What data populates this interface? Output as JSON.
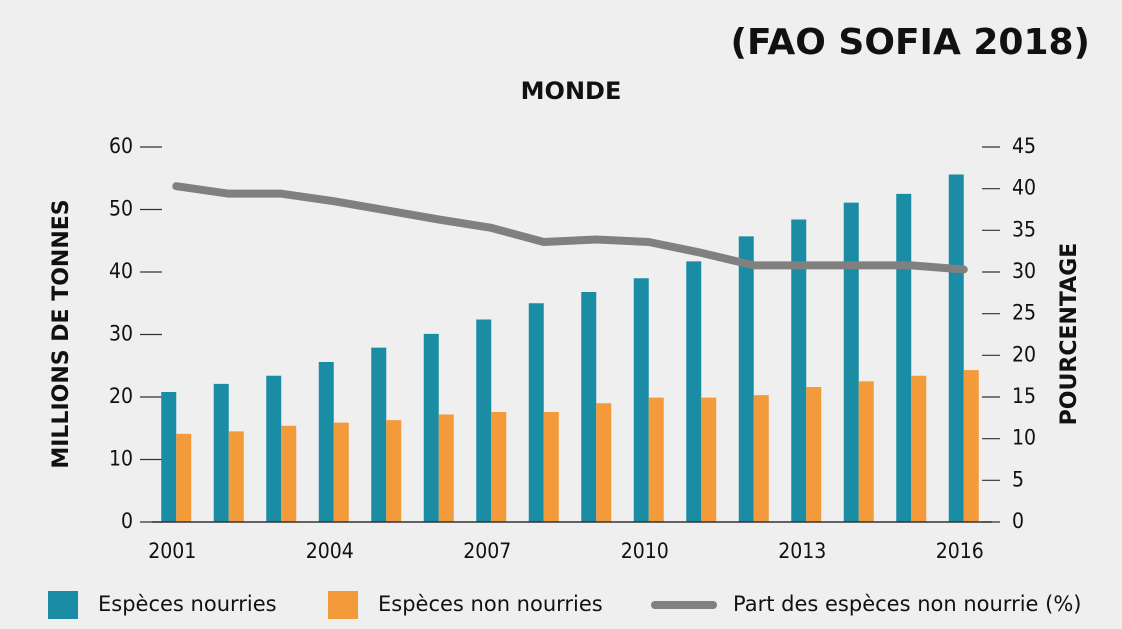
{
  "chart_data": {
    "type": "bar_line",
    "title": "(FAO SOFIA 2018)",
    "subtitle": "MONDE",
    "y_label": "MILLIONS DE TONNES",
    "y2_label": "POURCENTAGE",
    "categories": [
      "2001",
      null,
      null,
      "2004",
      null,
      null,
      "2007",
      null,
      null,
      "2010",
      null,
      null,
      "2013",
      null,
      null,
      "2016"
    ],
    "series": [
      {
        "name": "Espèces nourries",
        "color": "#1a8ca3",
        "type": "bar",
        "values": [
          20.8,
          22.1,
          23.4,
          25.6,
          27.9,
          30.1,
          32.4,
          35.0,
          36.8,
          39.0,
          41.7,
          45.7,
          48.4,
          51.1,
          52.5,
          55.6
        ]
      },
      {
        "name": "Espèces non nourries",
        "color": "#f39a3a",
        "type": "bar",
        "values": [
          14.1,
          14.5,
          15.4,
          15.9,
          16.3,
          17.2,
          17.6,
          17.6,
          19.0,
          19.9,
          19.9,
          20.3,
          21.6,
          22.5,
          23.4,
          24.3
        ]
      },
      {
        "name": "Part des espèces non nourrie (%)",
        "color": "#808080",
        "type": "line",
        "axis": "y2",
        "values": [
          40.3,
          39.4,
          39.4,
          38.5,
          37.4,
          36.3,
          35.3,
          33.6,
          33.9,
          33.6,
          32.3,
          30.8,
          30.8,
          30.8,
          30.8,
          30.3
        ]
      }
    ],
    "ylim": [
      0,
      60
    ],
    "yticks": [
      0,
      10,
      20,
      30,
      40,
      50,
      60
    ],
    "y2lim": [
      0,
      45
    ],
    "y2ticks": [
      0,
      5,
      10,
      15,
      20,
      25,
      30,
      35,
      40,
      45
    ],
    "legend": "bottom"
  }
}
